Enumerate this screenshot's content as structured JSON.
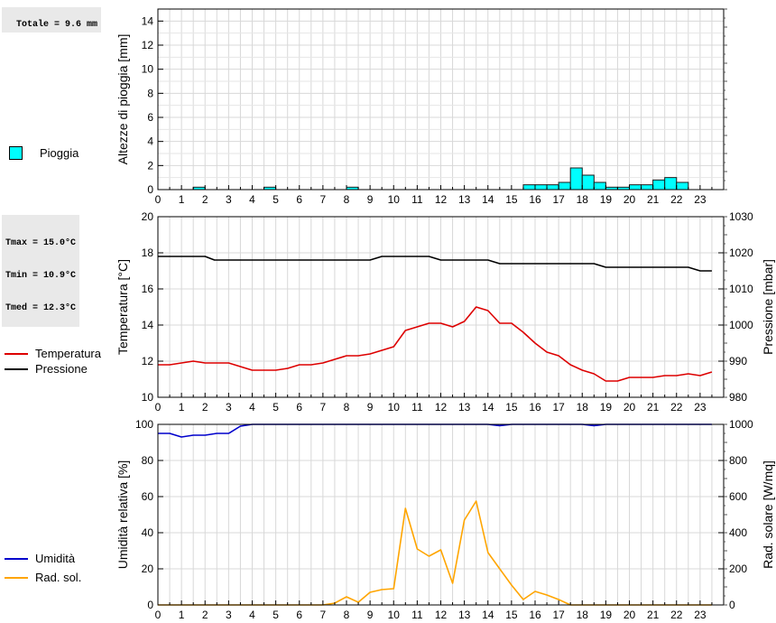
{
  "panels": {
    "rain": {
      "total_label": "Totale = 9.6 mm",
      "legend": "Pioggia",
      "color": "#00ffff"
    },
    "temp": {
      "stats": [
        "Tmax = 15.0°C",
        "Tmin = 10.9°C",
        "Tmed = 12.3°C"
      ],
      "legend_temp": "Temperatura",
      "legend_press": "Pressione",
      "temp_color": "#dd0000",
      "press_color": "#000000"
    },
    "hum": {
      "legend_hum": "Umidità",
      "legend_rad": "Rad. sol.",
      "hum_color": "#0000cc",
      "rad_color": "#ffa500"
    }
  },
  "chart_data": [
    {
      "type": "bar",
      "ylabel": "Altezze di pioggia [mm]",
      "ylim": [
        0,
        15
      ],
      "yticks": [
        0,
        2,
        4,
        6,
        8,
        10,
        12,
        14
      ],
      "xticks": [
        "0",
        "1",
        "2",
        "3",
        "4",
        "5",
        "6",
        "7",
        "8",
        "9",
        "10",
        "11",
        "12",
        "13",
        "14",
        "15",
        "16",
        "17",
        "18",
        "19",
        "20",
        "21",
        "22",
        "23"
      ],
      "grid": true,
      "series": [
        {
          "name": "Pioggia",
          "bars": [
            {
              "hour": 1.5,
              "value": 0.2
            },
            {
              "hour": 4.5,
              "value": 0.2
            },
            {
              "hour": 8.0,
              "value": 0.2
            },
            {
              "hour": 15.5,
              "value": 0.4
            },
            {
              "hour": 16.0,
              "value": 0.4
            },
            {
              "hour": 16.5,
              "value": 0.4
            },
            {
              "hour": 17.0,
              "value": 0.6
            },
            {
              "hour": 17.5,
              "value": 1.8
            },
            {
              "hour": 18.0,
              "value": 1.2
            },
            {
              "hour": 18.5,
              "value": 0.6
            },
            {
              "hour": 19.0,
              "value": 0.2
            },
            {
              "hour": 19.5,
              "value": 0.2
            },
            {
              "hour": 20.0,
              "value": 0.4
            },
            {
              "hour": 20.5,
              "value": 0.4
            },
            {
              "hour": 21.0,
              "value": 0.8
            },
            {
              "hour": 21.5,
              "value": 1.0
            },
            {
              "hour": 22.0,
              "value": 0.6
            }
          ]
        }
      ]
    },
    {
      "type": "line",
      "ylabel": "Temperatura [°C]",
      "ylabel_right": "Pressione [mbar]",
      "ylim": [
        10,
        20
      ],
      "ylim_right": [
        980,
        1030
      ],
      "yticks": [
        10,
        12,
        14,
        16,
        18,
        20
      ],
      "yticks_right": [
        980,
        990,
        1000,
        1010,
        1020,
        1030
      ],
      "xticks": [
        "0",
        "1",
        "2",
        "3",
        "4",
        "5",
        "6",
        "7",
        "8",
        "9",
        "10",
        "11",
        "12",
        "13",
        "14",
        "15",
        "16",
        "17",
        "18",
        "19",
        "20",
        "21",
        "22",
        "23"
      ],
      "grid": true,
      "series": [
        {
          "name": "Temperatura",
          "axis": "left",
          "x": [
            0,
            0.5,
            1,
            1.5,
            2,
            2.5,
            3,
            3.5,
            4,
            4.5,
            5,
            5.5,
            6,
            6.5,
            7,
            7.5,
            8,
            8.5,
            9,
            9.5,
            10,
            10.5,
            11,
            11.5,
            12,
            12.5,
            13,
            13.5,
            14,
            14.5,
            15,
            15.5,
            16,
            16.5,
            17,
            17.5,
            18,
            18.5,
            19,
            19.5,
            20,
            20.5,
            21,
            21.5,
            22,
            22.5,
            23,
            23.5
          ],
          "y": [
            11.8,
            11.8,
            11.9,
            12.0,
            11.9,
            11.9,
            11.9,
            11.7,
            11.5,
            11.5,
            11.5,
            11.6,
            11.8,
            11.8,
            11.9,
            12.1,
            12.3,
            12.3,
            12.4,
            12.6,
            12.8,
            13.7,
            13.9,
            14.1,
            14.1,
            13.9,
            14.2,
            15.0,
            14.8,
            14.1,
            14.1,
            13.6,
            13.0,
            12.5,
            12.3,
            11.8,
            11.5,
            11.3,
            10.9,
            10.9,
            11.1,
            11.1,
            11.1,
            11.2,
            11.2,
            11.3,
            11.2,
            11.4
          ]
        },
        {
          "name": "Pressione",
          "axis": "right",
          "x": [
            0,
            1,
            2,
            2.4,
            3,
            4,
            5,
            6,
            7,
            8,
            9,
            9.5,
            10,
            11,
            11.5,
            12,
            13,
            14,
            14.5,
            15,
            16,
            17,
            18,
            18.5,
            19,
            20,
            21,
            22,
            22.5,
            23,
            23.5
          ],
          "y": [
            1019,
            1019,
            1019,
            1018,
            1018,
            1018,
            1018,
            1018,
            1018,
            1018,
            1018,
            1019,
            1019,
            1019,
            1019,
            1018,
            1018,
            1018,
            1017,
            1017,
            1017,
            1017,
            1017,
            1017,
            1016,
            1016,
            1016,
            1016,
            1016,
            1015,
            1015
          ]
        }
      ]
    },
    {
      "type": "line",
      "ylabel": "Umidità relativa [%]",
      "ylabel_right": "Rad. solare [W/mq]",
      "ylim": [
        0,
        100
      ],
      "ylim_right": [
        0,
        1000
      ],
      "yticks": [
        0,
        20,
        40,
        60,
        80,
        100
      ],
      "yticks_right": [
        0,
        200,
        400,
        600,
        800,
        1000
      ],
      "xticks": [
        "0",
        "1",
        "2",
        "3",
        "4",
        "5",
        "6",
        "7",
        "8",
        "9",
        "10",
        "11",
        "12",
        "13",
        "14",
        "15",
        "16",
        "17",
        "18",
        "19",
        "20",
        "21",
        "22",
        "23"
      ],
      "grid": true,
      "series": [
        {
          "name": "Umidità",
          "axis": "left",
          "x": [
            0,
            0.5,
            1,
            1.5,
            2,
            2.5,
            3,
            3.5,
            4,
            5,
            6,
            7,
            8,
            9,
            10,
            11,
            12,
            13,
            14,
            14.5,
            15,
            16,
            17,
            18,
            18.5,
            19,
            20,
            21,
            22,
            23,
            23.5
          ],
          "y": [
            95,
            95,
            93,
            94,
            94,
            95,
            95,
            99,
            100,
            100,
            100,
            100,
            100,
            100,
            100,
            100,
            100,
            100,
            100,
            99.3,
            100,
            100,
            100,
            100,
            99.3,
            100,
            100,
            100,
            100,
            100,
            100
          ]
        },
        {
          "name": "Rad. sol.",
          "axis": "right",
          "x": [
            0,
            0.5,
            1,
            1.5,
            2,
            2.5,
            3,
            3.5,
            4,
            4.5,
            5,
            5.5,
            6,
            6.5,
            7,
            7.5,
            8,
            8.5,
            9,
            9.5,
            10,
            10.5,
            11,
            11.5,
            12,
            12.5,
            13,
            13.5,
            14,
            14.5,
            15,
            15.5,
            16,
            16.5,
            17,
            17.5,
            18,
            18.5,
            19,
            19.5,
            20,
            20.5,
            21,
            21.5,
            22,
            22.5,
            23,
            23.5
          ],
          "y": [
            0,
            0,
            0,
            0,
            0,
            0,
            0,
            0,
            0,
            0,
            0,
            0,
            0,
            0,
            0,
            10,
            45,
            15,
            70,
            85,
            90,
            535,
            310,
            270,
            305,
            120,
            470,
            575,
            290,
            200,
            110,
            30,
            75,
            55,
            30,
            0,
            0,
            0,
            0,
            0,
            0,
            0,
            0,
            0,
            0,
            0,
            0,
            0
          ]
        }
      ]
    }
  ]
}
